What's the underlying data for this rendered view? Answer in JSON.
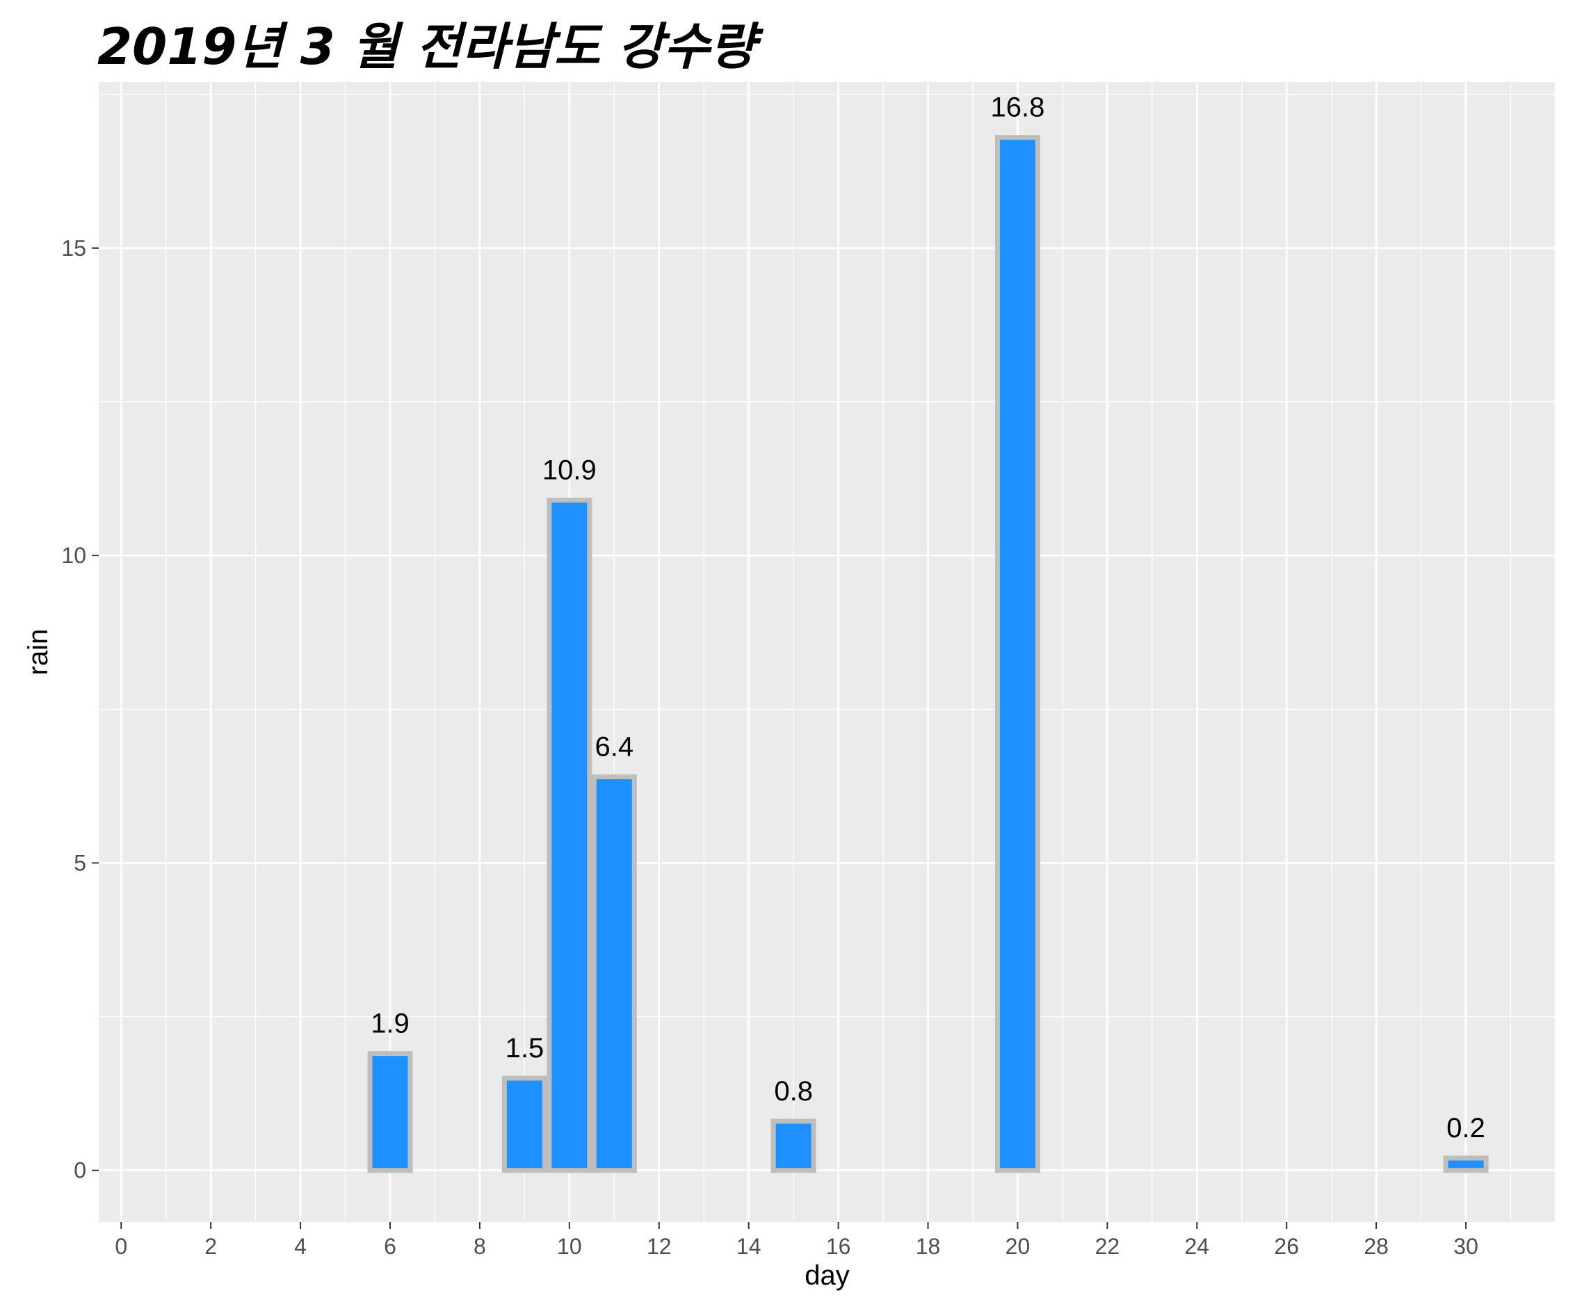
{
  "chart_data": {
    "type": "bar",
    "title": "2019년 3 월 전라남도 강수량",
    "xlabel": "day",
    "ylabel": "rain",
    "x": [
      6,
      9,
      10,
      11,
      15,
      20,
      30
    ],
    "values": [
      1.9,
      1.5,
      10.9,
      6.4,
      0.8,
      16.8,
      0.2
    ],
    "data_labels": [
      "1.9",
      "1.5",
      "10.9",
      "6.4",
      "0.8",
      "16.8",
      "0.2"
    ],
    "xlim": [
      -0.5,
      32
    ],
    "ylim": [
      -0.84,
      17.7
    ],
    "x_ticks": [
      0,
      2,
      4,
      6,
      8,
      10,
      12,
      14,
      16,
      18,
      20,
      22,
      24,
      26,
      28,
      30
    ],
    "x_tick_labels": [
      "0",
      "2",
      "4",
      "6",
      "8",
      "10",
      "12",
      "14",
      "16",
      "18",
      "20",
      "22",
      "24",
      "26",
      "28",
      "30"
    ],
    "y_ticks": [
      0,
      5,
      10,
      15
    ],
    "y_tick_labels": [
      "0",
      "5",
      "10",
      "15"
    ],
    "grid": true,
    "legend": "none",
    "colors": {
      "bar_fill": "#1E90FF",
      "bar_outline": "#BEBEBE",
      "panel_background": "#EBEBEB",
      "grid_line": "#FFFFFF",
      "tick_text": "#4D4D4D"
    }
  }
}
